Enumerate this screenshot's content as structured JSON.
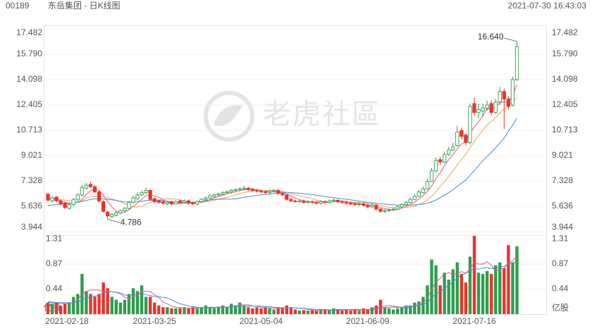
{
  "chart_data": {
    "type": "candlestick",
    "code": "00189",
    "title": "东岳集团 - 日K线图",
    "timestamp": "2021-07-30 16:43:03",
    "watermark": "老虎社區",
    "up_color": "#2f9e4f",
    "down_color": "#e8352a",
    "grid": true,
    "categories": [
      "2021-02-18",
      null,
      null,
      null,
      null,
      null,
      null,
      null,
      null,
      null,
      null,
      null,
      null,
      null,
      null,
      null,
      null,
      null,
      null,
      null,
      null,
      null,
      null,
      null,
      null,
      "2021-03-25",
      null,
      null,
      null,
      null,
      null,
      null,
      null,
      null,
      null,
      null,
      null,
      null,
      null,
      null,
      null,
      null,
      null,
      null,
      null,
      null,
      null,
      null,
      null,
      null,
      "2021-05-04",
      null,
      null,
      null,
      null,
      null,
      null,
      null,
      null,
      null,
      null,
      null,
      null,
      null,
      null,
      null,
      null,
      null,
      null,
      null,
      null,
      null,
      null,
      null,
      null,
      "2021-06-09",
      null,
      null,
      null,
      null,
      null,
      null,
      null,
      null,
      null,
      null,
      null,
      null,
      null,
      null,
      null,
      null,
      null,
      null,
      null,
      null,
      null,
      null,
      null,
      null,
      "2021-07-16",
      null,
      null,
      null,
      null,
      null,
      null,
      null,
      null,
      null,
      null
    ],
    "open": [
      6.45,
      6.0,
      6.25,
      6.0,
      5.85,
      5.5,
      5.75,
      6.1,
      6.4,
      6.85,
      7.1,
      6.95,
      6.6,
      5.95,
      5.25,
      4.95,
      5.05,
      5.2,
      5.35,
      5.5,
      5.9,
      6.15,
      6.4,
      6.55,
      6.7,
      6.15,
      6.0,
      5.95,
      5.8,
      5.95,
      5.8,
      6.0,
      5.9,
      6.0,
      5.9,
      5.8,
      5.95,
      6.1,
      6.2,
      6.3,
      6.4,
      6.45,
      6.55,
      6.6,
      6.7,
      6.75,
      6.8,
      6.85,
      6.8,
      6.7,
      6.65,
      6.6,
      6.55,
      6.65,
      6.7,
      6.5,
      6.4,
      6.1,
      6.0,
      5.95,
      6.0,
      5.9,
      5.95,
      5.9,
      5.85,
      5.95,
      5.9,
      6.0,
      6.05,
      5.95,
      5.9,
      5.85,
      5.8,
      5.75,
      5.8,
      5.7,
      5.6,
      5.7,
      5.45,
      5.3,
      5.35,
      5.4,
      5.45,
      5.6,
      5.75,
      5.9,
      6.1,
      6.3,
      6.55,
      6.8,
      7.3,
      8.0,
      8.75,
      8.6,
      9.1,
      9.4,
      9.7,
      10.7,
      10.4,
      9.9,
      12.5,
      11.9,
      12.0,
      12.2,
      12.5,
      11.9,
      12.6,
      13.3,
      12.8,
      12.4,
      14.1
    ],
    "high": [
      6.55,
      6.3,
      6.35,
      6.1,
      5.95,
      5.85,
      6.2,
      6.5,
      7.05,
      7.2,
      7.25,
      7.05,
      6.7,
      6.05,
      5.35,
      5.2,
      5.3,
      5.45,
      5.6,
      6.0,
      6.35,
      6.55,
      6.7,
      6.9,
      6.8,
      6.25,
      6.05,
      6.0,
      6.0,
      6.0,
      6.05,
      6.1,
      6.1,
      6.1,
      5.95,
      6.05,
      6.2,
      6.3,
      6.45,
      6.5,
      6.55,
      6.65,
      6.7,
      6.8,
      6.85,
      6.9,
      7.0,
      6.95,
      6.85,
      6.8,
      6.75,
      6.7,
      6.75,
      6.8,
      6.8,
      6.6,
      6.45,
      6.2,
      6.1,
      6.1,
      6.1,
      6.05,
      6.05,
      6.0,
      6.05,
      6.05,
      6.1,
      6.15,
      6.1,
      6.05,
      6.0,
      5.95,
      5.9,
      5.9,
      5.9,
      5.8,
      5.8,
      5.8,
      5.55,
      5.45,
      5.5,
      5.55,
      5.7,
      5.85,
      6.0,
      6.25,
      6.45,
      6.75,
      6.95,
      7.5,
      8.2,
      8.9,
      8.95,
      9.3,
      9.6,
      9.9,
      11.0,
      10.9,
      10.5,
      12.5,
      12.9,
      12.5,
      12.5,
      12.7,
      12.7,
      12.8,
      13.6,
      13.5,
      13.0,
      14.3,
      16.64
    ],
    "low": [
      5.95,
      5.9,
      5.9,
      5.7,
      5.45,
      5.4,
      5.65,
      6.0,
      6.3,
      6.75,
      6.85,
      6.5,
      5.9,
      5.2,
      4.786,
      4.85,
      4.95,
      5.1,
      5.25,
      5.4,
      5.8,
      6.05,
      6.3,
      6.45,
      6.0,
      5.85,
      5.8,
      5.75,
      5.7,
      5.7,
      5.75,
      5.8,
      5.85,
      5.75,
      5.7,
      5.7,
      5.85,
      6.0,
      6.1,
      6.2,
      6.3,
      6.35,
      6.45,
      6.5,
      6.6,
      6.65,
      6.7,
      6.65,
      6.6,
      6.55,
      6.5,
      6.45,
      6.45,
      6.55,
      6.4,
      6.3,
      6.0,
      5.9,
      5.85,
      5.85,
      5.8,
      5.8,
      5.8,
      5.75,
      5.75,
      5.8,
      5.8,
      5.9,
      5.85,
      5.8,
      5.75,
      5.7,
      5.65,
      5.65,
      5.6,
      5.5,
      5.5,
      5.35,
      5.2,
      5.2,
      5.25,
      5.3,
      5.4,
      5.55,
      5.7,
      5.85,
      6.05,
      6.25,
      6.5,
      6.75,
      7.25,
      7.9,
      8.4,
      8.5,
      9.0,
      9.3,
      9.6,
      10.1,
      9.7,
      9.8,
      11.7,
      11.5,
      11.6,
      12.0,
      11.7,
      11.8,
      12.4,
      10.8,
      12.1,
      12.3,
      14.0
    ],
    "close": [
      6.05,
      6.2,
      6.0,
      5.8,
      5.55,
      5.75,
      6.1,
      6.4,
      6.9,
      7.05,
      6.95,
      6.6,
      6.0,
      5.3,
      5.0,
      5.1,
      5.2,
      5.35,
      5.5,
      5.9,
      6.2,
      6.4,
      6.55,
      6.7,
      6.1,
      5.95,
      5.9,
      5.85,
      5.9,
      5.8,
      5.95,
      5.9,
      6.0,
      5.85,
      5.8,
      5.95,
      6.1,
      6.2,
      6.35,
      6.4,
      6.45,
      6.55,
      6.6,
      6.7,
      6.75,
      6.8,
      6.85,
      6.75,
      6.7,
      6.65,
      6.6,
      6.55,
      6.65,
      6.7,
      6.5,
      6.4,
      6.1,
      6.0,
      5.95,
      6.0,
      5.9,
      5.95,
      5.9,
      5.85,
      5.95,
      5.9,
      6.0,
      6.05,
      5.95,
      5.9,
      5.85,
      5.8,
      5.75,
      5.8,
      5.7,
      5.6,
      5.7,
      5.45,
      5.3,
      5.35,
      5.4,
      5.45,
      5.6,
      5.75,
      5.9,
      6.1,
      6.3,
      6.6,
      6.8,
      7.3,
      8.0,
      8.7,
      8.6,
      9.1,
      9.4,
      9.6,
      10.6,
      10.3,
      9.9,
      12.3,
      11.9,
      12.1,
      12.2,
      12.4,
      11.9,
      12.6,
      13.3,
      12.8,
      12.3,
      14.1,
      16.3
    ],
    "volume": [
      0.2,
      0.18,
      0.2,
      0.15,
      0.18,
      0.2,
      0.3,
      0.35,
      0.7,
      0.4,
      0.35,
      0.3,
      0.35,
      0.55,
      0.45,
      0.3,
      0.25,
      0.2,
      0.25,
      0.35,
      0.45,
      0.4,
      0.5,
      0.3,
      0.3,
      0.2,
      0.15,
      0.12,
      0.12,
      0.1,
      0.1,
      0.1,
      0.12,
      0.1,
      0.12,
      0.1,
      0.12,
      0.15,
      0.12,
      0.1,
      0.12,
      0.15,
      0.12,
      0.18,
      0.15,
      0.2,
      0.15,
      0.12,
      0.1,
      0.12,
      0.1,
      0.12,
      0.1,
      0.08,
      0.12,
      0.1,
      0.15,
      0.12,
      0.08,
      0.06,
      0.07,
      0.06,
      0.07,
      0.06,
      0.08,
      0.07,
      0.08,
      0.1,
      0.07,
      0.06,
      0.08,
      0.06,
      0.08,
      0.06,
      0.1,
      0.08,
      0.12,
      0.15,
      0.25,
      0.12,
      0.1,
      0.08,
      0.1,
      0.12,
      0.15,
      0.15,
      0.2,
      0.22,
      0.3,
      0.5,
      0.95,
      0.85,
      0.5,
      0.72,
      0.6,
      0.78,
      0.9,
      0.7,
      0.55,
      1.0,
      1.36,
      0.72,
      0.7,
      0.75,
      0.7,
      0.85,
      0.9,
      0.8,
      1.2,
      0.9,
      1.18
    ],
    "ma": [
      {
        "color": "#e9567a",
        "values": [
          6.15,
          6.15,
          6.1,
          6.02,
          5.92,
          5.86,
          5.84,
          5.92,
          6.1,
          6.44,
          6.68,
          6.78,
          6.7,
          6.38,
          5.97,
          5.6,
          5.32,
          5.19,
          5.23,
          5.41,
          5.63,
          5.87,
          6.11,
          6.35,
          6.39,
          6.34,
          6.24,
          6.1,
          5.94,
          5.88,
          5.88,
          5.88,
          5.91,
          5.9,
          5.9,
          5.9,
          5.94,
          5.98,
          6.08,
          6.2,
          6.3,
          6.39,
          6.47,
          6.55,
          6.61,
          6.68,
          6.74,
          6.77,
          6.77,
          6.75,
          6.71,
          6.65,
          6.63,
          6.63,
          6.6,
          6.56,
          6.47,
          6.34,
          6.19,
          6.09,
          5.99,
          5.96,
          5.94,
          5.92,
          5.91,
          5.91,
          5.92,
          5.95,
          5.97,
          5.98,
          5.97,
          5.91,
          5.85,
          5.82,
          5.78,
          5.73,
          5.71,
          5.65,
          5.55,
          5.48,
          5.44,
          5.39,
          5.42,
          5.51,
          5.62,
          5.76,
          5.93,
          6.13,
          6.36,
          6.62,
          7.0,
          7.48,
          7.88,
          8.34,
          8.76,
          9.08,
          9.46,
          9.8,
          9.96,
          10.54,
          10.94,
          11.28,
          11.68,
          12.18,
          12.1,
          12.26,
          12.56,
          12.6,
          12.58,
          13.02,
          13.76
        ]
      },
      {
        "color": "#f4a446",
        "values": [
          6.2,
          6.18,
          6.15,
          6.1,
          6.05,
          6.0,
          5.98,
          5.97,
          6.01,
          6.18,
          6.27,
          6.31,
          6.31,
          6.26,
          6.21,
          6.14,
          6.05,
          5.94,
          5.8,
          5.69,
          5.61,
          5.59,
          5.65,
          5.79,
          5.9,
          5.99,
          6.06,
          6.11,
          6.15,
          6.14,
          6.11,
          6.06,
          6.01,
          5.92,
          5.89,
          5.89,
          5.91,
          5.94,
          5.99,
          6.05,
          6.1,
          6.17,
          6.23,
          6.31,
          6.4,
          6.49,
          6.56,
          6.62,
          6.66,
          6.68,
          6.69,
          6.69,
          6.7,
          6.7,
          6.68,
          6.64,
          6.57,
          6.49,
          6.41,
          6.35,
          6.28,
          6.21,
          6.14,
          6.06,
          6.0,
          5.95,
          5.94,
          5.94,
          5.94,
          5.94,
          5.94,
          5.93,
          5.91,
          5.9,
          5.87,
          5.84,
          5.81,
          5.75,
          5.68,
          5.63,
          5.58,
          5.55,
          5.54,
          5.55,
          5.56,
          5.6,
          5.66,
          5.77,
          5.89,
          6.07,
          6.31,
          6.62,
          6.95,
          7.29,
          7.65,
          8.0,
          8.4,
          8.77,
          9.1,
          9.54,
          9.97,
          10.36,
          10.71,
          11.07,
          11.3,
          11.55,
          11.87,
          12.14,
          12.38,
          12.61,
          12.91
        ]
      },
      {
        "color": "#3b8fd8",
        "values": [
          5.7,
          5.72,
          5.75,
          5.78,
          5.8,
          5.83,
          5.86,
          5.9,
          5.96,
          6.03,
          6.1,
          6.14,
          6.15,
          6.13,
          6.1,
          6.07,
          6.03,
          5.98,
          5.93,
          5.92,
          5.94,
          5.95,
          5.98,
          6.02,
          6.05,
          6.06,
          6.05,
          6.02,
          5.98,
          5.92,
          5.86,
          5.82,
          5.83,
          5.87,
          5.9,
          5.94,
          5.98,
          6.02,
          6.07,
          6.09,
          6.11,
          6.11,
          6.12,
          6.12,
          6.14,
          6.19,
          6.24,
          6.28,
          6.33,
          6.37,
          6.4,
          6.43,
          6.46,
          6.5,
          6.54,
          6.56,
          6.56,
          6.55,
          6.53,
          6.51,
          6.48,
          6.45,
          6.42,
          6.38,
          6.34,
          6.29,
          6.25,
          6.22,
          6.18,
          6.14,
          6.11,
          6.07,
          6.03,
          5.98,
          5.94,
          5.89,
          5.87,
          5.84,
          5.81,
          5.78,
          5.76,
          5.74,
          5.72,
          5.72,
          5.72,
          5.72,
          5.73,
          5.76,
          5.79,
          5.84,
          5.94,
          6.06,
          6.21,
          6.38,
          6.56,
          6.74,
          6.97,
          7.18,
          7.39,
          7.71,
          8.02,
          8.36,
          8.68,
          8.96,
          9.23,
          9.55,
          9.87,
          10.2,
          10.66,
          11.05,
          11.52
        ]
      }
    ],
    "volume_ma": [
      {
        "color": "#e9567a",
        "values": [
          0.22,
          0.21,
          0.2,
          0.19,
          0.18,
          0.18,
          0.21,
          0.25,
          0.35,
          0.39,
          0.42,
          0.42,
          0.42,
          0.39,
          0.4,
          0.39,
          0.38,
          0.35,
          0.29,
          0.27,
          0.3,
          0.33,
          0.39,
          0.4,
          0.39,
          0.34,
          0.29,
          0.21,
          0.18,
          0.14,
          0.12,
          0.11,
          0.11,
          0.1,
          0.11,
          0.11,
          0.11,
          0.12,
          0.12,
          0.12,
          0.12,
          0.13,
          0.12,
          0.13,
          0.14,
          0.16,
          0.16,
          0.16,
          0.14,
          0.14,
          0.12,
          0.11,
          0.11,
          0.1,
          0.1,
          0.1,
          0.11,
          0.11,
          0.11,
          0.1,
          0.1,
          0.08,
          0.07,
          0.06,
          0.07,
          0.07,
          0.07,
          0.08,
          0.08,
          0.08,
          0.08,
          0.07,
          0.07,
          0.07,
          0.08,
          0.08,
          0.09,
          0.1,
          0.14,
          0.14,
          0.15,
          0.14,
          0.13,
          0.11,
          0.11,
          0.12,
          0.14,
          0.17,
          0.2,
          0.27,
          0.43,
          0.56,
          0.62,
          0.7,
          0.72,
          0.69,
          0.7,
          0.74,
          0.71,
          0.79,
          0.9,
          0.87,
          0.87,
          0.91,
          0.85,
          0.74,
          0.78,
          0.8,
          0.89,
          0.93,
          1.0
        ]
      },
      {
        "color": "#3b8fd8",
        "values": [
          0.2,
          0.2,
          0.2,
          0.2,
          0.2,
          0.2,
          0.2,
          0.21,
          0.25,
          0.28,
          0.3,
          0.31,
          0.33,
          0.37,
          0.39,
          0.39,
          0.38,
          0.37,
          0.33,
          0.33,
          0.34,
          0.35,
          0.36,
          0.34,
          0.32,
          0.31,
          0.3,
          0.29,
          0.28,
          0.25,
          0.21,
          0.18,
          0.16,
          0.14,
          0.13,
          0.12,
          0.11,
          0.11,
          0.11,
          0.11,
          0.12,
          0.12,
          0.12,
          0.13,
          0.13,
          0.14,
          0.14,
          0.14,
          0.14,
          0.14,
          0.14,
          0.13,
          0.13,
          0.12,
          0.11,
          0.11,
          0.11,
          0.11,
          0.11,
          0.1,
          0.1,
          0.09,
          0.09,
          0.08,
          0.08,
          0.08,
          0.07,
          0.07,
          0.07,
          0.07,
          0.08,
          0.08,
          0.08,
          0.08,
          0.08,
          0.08,
          0.08,
          0.09,
          0.11,
          0.11,
          0.12,
          0.12,
          0.12,
          0.12,
          0.13,
          0.13,
          0.14,
          0.16,
          0.17,
          0.2,
          0.28,
          0.36,
          0.39,
          0.45,
          0.5,
          0.56,
          0.63,
          0.68,
          0.71,
          0.75,
          0.8,
          0.78,
          0.8,
          0.81,
          0.79,
          0.81,
          0.82,
          0.83,
          0.88,
          0.89,
          0.92
        ]
      }
    ],
    "ylim": [
      3.944,
      17.482
    ],
    "yticks": [
      3.944,
      5.636,
      7.328,
      9.021,
      10.713,
      12.405,
      14.098,
      {
        "value": 15.79,
        "label": "15.790"
      },
      17.482
    ],
    "volume_ylim": [
      0,
      1.36
    ],
    "volume_yticks": [
      0.44,
      0.87,
      1.31
    ],
    "volume_unit": "亿股",
    "high_label": {
      "value": 16.64,
      "label": "16.640"
    },
    "low_label": {
      "value": 4.786,
      "label": "4.786"
    }
  }
}
